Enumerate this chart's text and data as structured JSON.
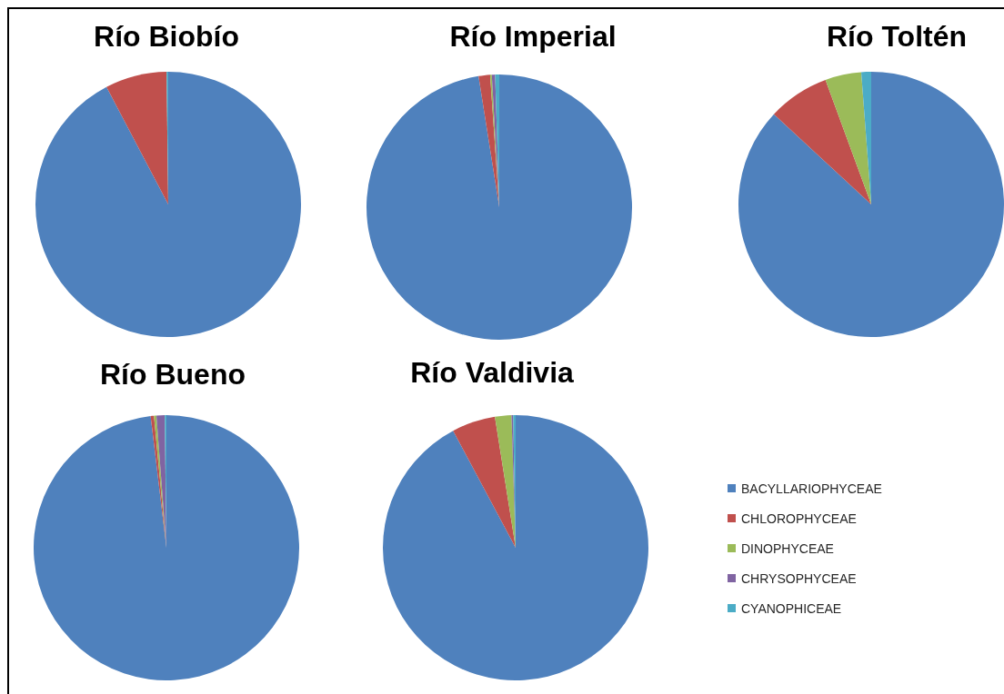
{
  "chart_data": [
    {
      "type": "pie",
      "title": "Río Biobío",
      "categories": [
        null,
        null,
        null,
        null,
        null
      ],
      "values": [
        92.3,
        7.5,
        0,
        0,
        0.2
      ],
      "colors": [
        "#4f81bd",
        "#c0504d",
        "#9bbb59",
        "#8064a2",
        "#4bacc6"
      ]
    },
    {
      "type": "pie",
      "title": "Río Imperial",
      "categories": [
        null,
        null,
        null,
        null,
        null
      ],
      "values": [
        97.5,
        1.4,
        0.2,
        0.4,
        0.5
      ],
      "colors": [
        "#4f81bd",
        "#c0504d",
        "#9bbb59",
        "#8064a2",
        "#4bacc6"
      ]
    },
    {
      "type": "pie",
      "title": "Río Toltén",
      "categories": [
        null,
        null,
        null,
        null,
        null
      ],
      "values": [
        86.9,
        7.5,
        4.4,
        0,
        1.2
      ],
      "colors": [
        "#4f81bd",
        "#c0504d",
        "#9bbb59",
        "#8064a2",
        "#4bacc6"
      ]
    },
    {
      "type": "pie",
      "title": "Río Bueno",
      "categories": [
        null,
        null,
        null,
        null,
        null
      ],
      "values": [
        98.1,
        0.4,
        0.3,
        1.0,
        0.2
      ],
      "colors": [
        "#4f81bd",
        "#c0504d",
        "#9bbb59",
        "#8064a2",
        "#4bacc6"
      ]
    },
    {
      "type": "pie",
      "title": "Río Valdivia",
      "categories": [
        "BACYLLARIOPHYCEAE",
        "CHLOROPHYCEAE",
        "DINOPHYCEAE",
        "CHRYSOPHYCEAE",
        "CYANOPHICEAE"
      ],
      "values": [
        92.2,
        5.3,
        2.0,
        0.2,
        0.3
      ],
      "colors": [
        "#4f81bd",
        "#c0504d",
        "#9bbb59",
        "#8064a2",
        "#4bacc6"
      ],
      "legend": "right"
    }
  ]
}
